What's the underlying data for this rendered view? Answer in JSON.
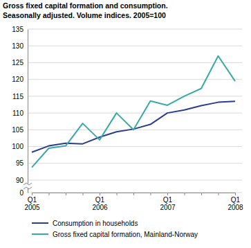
{
  "chart_data": {
    "type": "line",
    "title": "Gross fixed capital formation and consumption.",
    "subtitle": "Seasonally adjusted. Volume indices. 2005=100",
    "categories": [
      "Q1 2005",
      null,
      null,
      null,
      "Q1 2006",
      null,
      null,
      null,
      "Q1 2007",
      null,
      null,
      null,
      "Q1 2008"
    ],
    "series": [
      {
        "name": "Consumption in households",
        "color": "#2b3d8f",
        "values": [
          98.3,
          100.2,
          101.0,
          100.8,
          102.8,
          104.4,
          105.2,
          106.6,
          110.0,
          110.9,
          112.2,
          113.2,
          113.5
        ]
      },
      {
        "name": "Gross fixed capital formation, Mainland-Norway",
        "color": "#3aa9a6",
        "values": [
          93.8,
          99.5,
          100.2,
          106.9,
          102.0,
          110.0,
          105.0,
          113.6,
          112.3,
          115.0,
          117.3,
          127.0,
          119.5
        ]
      }
    ],
    "ylim": [
      0,
      135
    ],
    "yticks": [
      0,
      90,
      95,
      100,
      105,
      110,
      115,
      120,
      125,
      130,
      135
    ],
    "grid": true,
    "legend": "bottom"
  }
}
